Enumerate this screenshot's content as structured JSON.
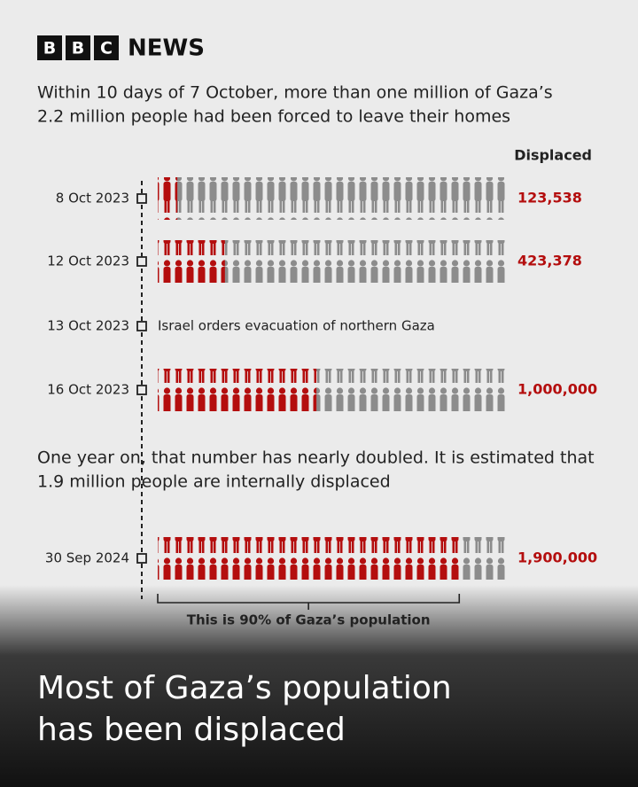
{
  "brand": {
    "letters": [
      "B",
      "B",
      "C"
    ],
    "name": "NEWS"
  },
  "chart_data": {
    "type": "pictogram",
    "title": [
      "Within 10 days of 7 October, more than one million of Gaza’s",
      "2.2 million people had been forced to leave their homes"
    ],
    "value_header": "Displaced",
    "categories": [
      "8 Oct 2023",
      "12 Oct 2023",
      "16 Oct 2023",
      "30 Sep 2024"
    ],
    "values": [
      123538,
      423378,
      1000000,
      1900000
    ],
    "value_labels": [
      "123,538",
      "423,378",
      "1,000,000",
      "1,900,000"
    ],
    "xlim": [
      0,
      2200000
    ],
    "color": "#b40e0e",
    "rest_color": "#8c8c8c",
    "events": [
      {
        "date": "13 Oct 2023",
        "label": "Israel orders evacuation of northern Gaza"
      }
    ],
    "note": [
      "One year on, that number has nearly doubled. It is estimated that",
      "1.9 million people are internally displaced"
    ],
    "bracket_label": "This is 90% of Gaza’s population"
  },
  "headline": [
    "Most of Gaza’s population",
    "has been displaced"
  ]
}
